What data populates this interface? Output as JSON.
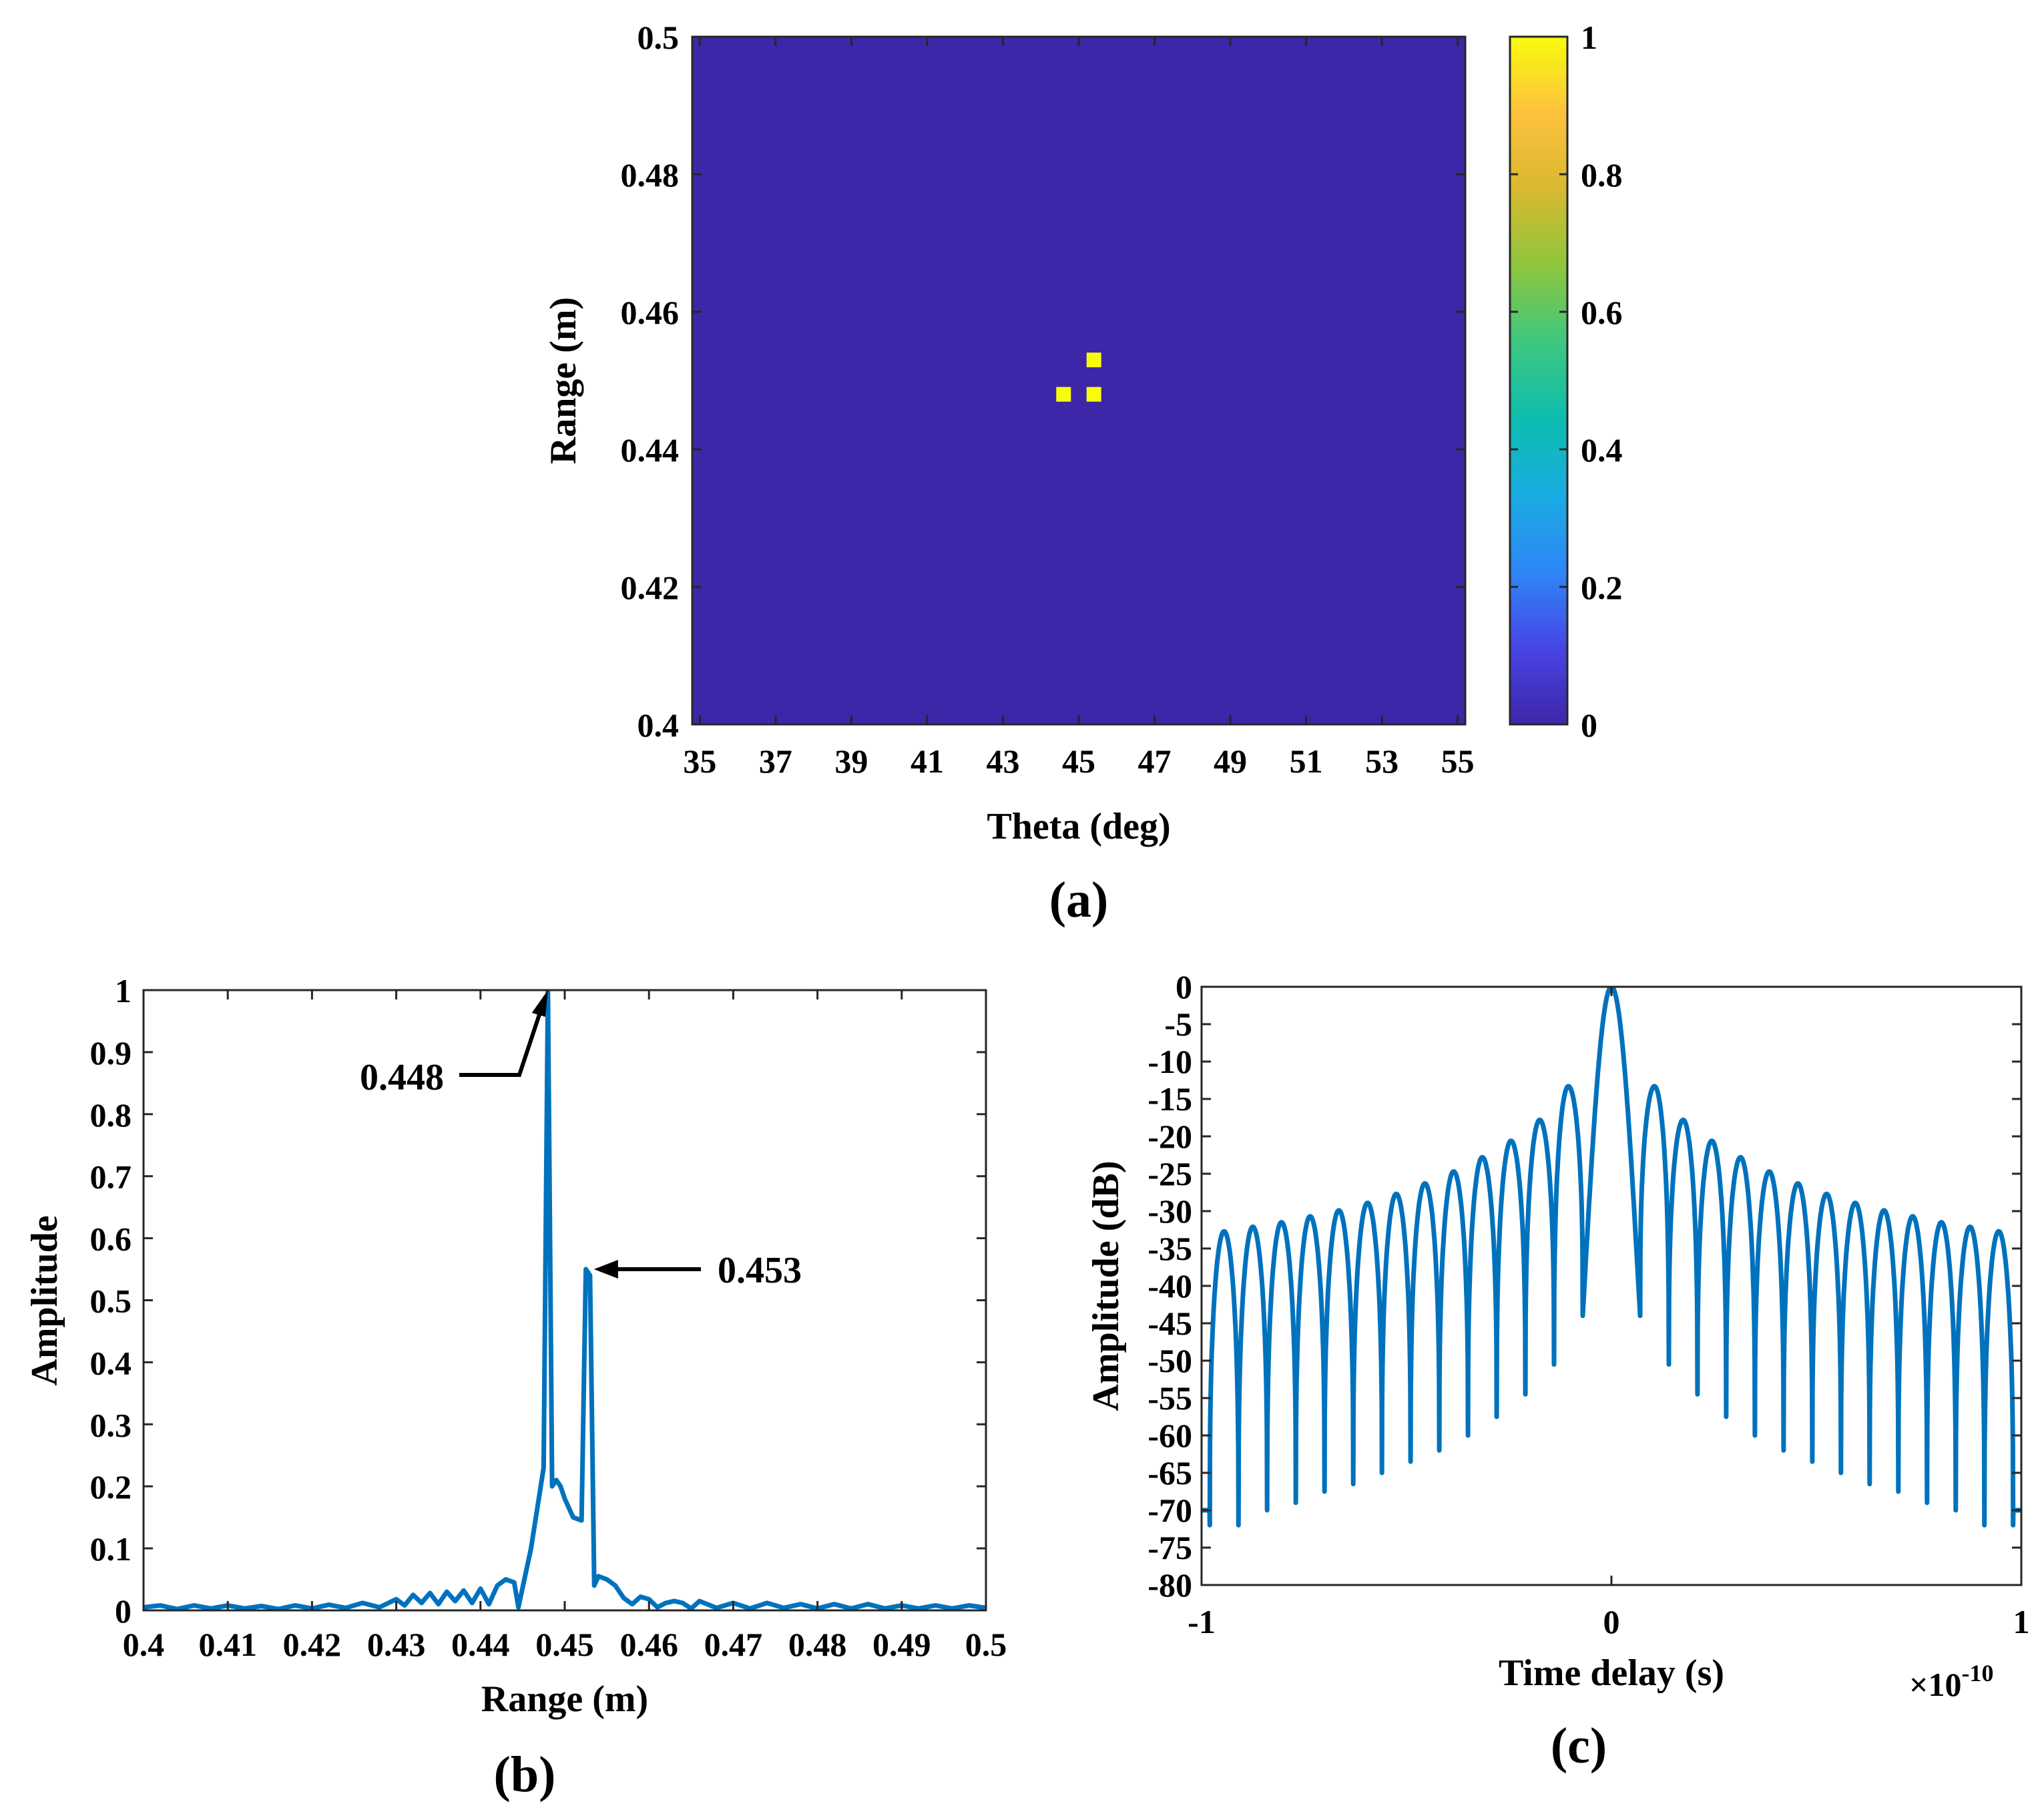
{
  "chart_data": [
    {
      "panel": "(a)",
      "type": "heatmap",
      "xlabel": "Theta (deg)",
      "ylabel": "Range (m)",
      "xlim": [
        34.8,
        55.2
      ],
      "ylim": [
        0.4,
        0.5
      ],
      "xticks": [
        35,
        37,
        39,
        41,
        43,
        45,
        47,
        49,
        51,
        53,
        55
      ],
      "yticks": [
        0.4,
        0.42,
        0.44,
        0.46,
        0.48,
        0.5
      ],
      "background_value": 0,
      "cells": [
        {
          "theta": 44.6,
          "range": 0.448,
          "value": 1
        },
        {
          "theta": 45.4,
          "range": 0.448,
          "value": 1
        },
        {
          "theta": 45.4,
          "range": 0.453,
          "value": 1
        }
      ],
      "colorbar": {
        "ticks": [
          0,
          0.2,
          0.4,
          0.6,
          0.8,
          1
        ],
        "colormap": "parula",
        "colors": [
          "#3e26a8",
          "#4745e5",
          "#2e86f8",
          "#1aace2",
          "#0dbdaf",
          "#3ec780",
          "#8ec63d",
          "#d8b92f",
          "#fdc13d",
          "#f9fb0e"
        ]
      }
    },
    {
      "panel": "(b)",
      "type": "line",
      "xlabel": "Range (m)",
      "ylabel": "Amplitude",
      "xlim": [
        0.4,
        0.5
      ],
      "ylim": [
        0,
        1
      ],
      "xticks": [
        0.4,
        0.41,
        0.42,
        0.43,
        0.44,
        0.45,
        0.46,
        0.47,
        0.48,
        0.49,
        0.5
      ],
      "yticks": [
        0,
        0.1,
        0.2,
        0.3,
        0.4,
        0.5,
        0.6,
        0.7,
        0.8,
        0.9,
        1
      ],
      "color": "#0072bd",
      "x": [
        0.4,
        0.402,
        0.404,
        0.406,
        0.408,
        0.41,
        0.412,
        0.414,
        0.416,
        0.418,
        0.42,
        0.422,
        0.424,
        0.426,
        0.428,
        0.43,
        0.431,
        0.432,
        0.433,
        0.434,
        0.435,
        0.436,
        0.437,
        0.438,
        0.439,
        0.44,
        0.441,
        0.442,
        0.443,
        0.444,
        0.4445,
        0.446,
        0.4475,
        0.448,
        0.4485,
        0.449,
        0.4495,
        0.45,
        0.451,
        0.452,
        0.4525,
        0.453,
        0.4535,
        0.454,
        0.455,
        0.456,
        0.457,
        0.458,
        0.459,
        0.46,
        0.461,
        0.462,
        0.463,
        0.464,
        0.465,
        0.466,
        0.468,
        0.47,
        0.472,
        0.474,
        0.476,
        0.478,
        0.48,
        0.482,
        0.484,
        0.486,
        0.488,
        0.49,
        0.492,
        0.494,
        0.496,
        0.498,
        0.5
      ],
      "y": [
        0.005,
        0.008,
        0.002,
        0.008,
        0.003,
        0.008,
        0.003,
        0.007,
        0.002,
        0.008,
        0.003,
        0.009,
        0.004,
        0.012,
        0.005,
        0.018,
        0.008,
        0.025,
        0.012,
        0.028,
        0.01,
        0.03,
        0.015,
        0.032,
        0.012,
        0.035,
        0.01,
        0.04,
        0.05,
        0.045,
        0.005,
        0.1,
        0.23,
        1.0,
        0.2,
        0.21,
        0.2,
        0.18,
        0.15,
        0.145,
        0.55,
        0.54,
        0.04,
        0.055,
        0.05,
        0.04,
        0.02,
        0.01,
        0.022,
        0.018,
        0.005,
        0.012,
        0.015,
        0.012,
        0.003,
        0.015,
        0.004,
        0.012,
        0.003,
        0.012,
        0.004,
        0.01,
        0.003,
        0.01,
        0.003,
        0.01,
        0.003,
        0.008,
        0.003,
        0.008,
        0.003,
        0.008,
        0.004
      ],
      "annotations": [
        {
          "text": "0.448",
          "x": 0.448,
          "y": 1.0
        },
        {
          "text": "0.453",
          "x": 0.453,
          "y": 0.55
        }
      ]
    },
    {
      "panel": "(c)",
      "type": "line",
      "xlabel": "Time delay (s)",
      "ylabel": "Amplitude (dB)",
      "xlim": [
        -1,
        1
      ],
      "ylim": [
        -80,
        0
      ],
      "x_exponent": "×10",
      "x_exponent_power": "-10",
      "xticks": [
        -1,
        0,
        1
      ],
      "yticks": [
        0,
        -5,
        -10,
        -15,
        -20,
        -25,
        -30,
        -35,
        -40,
        -45,
        -50,
        -55,
        -60,
        -65,
        -70,
        -75,
        -80
      ],
      "color": "#0072bd",
      "mainlobe_halfwidth": 0.07,
      "sidelobe_spacing": 0.07,
      "sidelobe_peaks_db": [
        -13.3,
        -17.8,
        -20.6,
        -22.8,
        -24.7,
        -26.3,
        -27.7,
        -28.9,
        -29.9,
        -30.7,
        -31.5,
        -32.1,
        -32.7
      ],
      "null_depths_db": [
        -44,
        -50.5,
        -54.5,
        -57.5,
        -60,
        -62,
        -63.5,
        -65,
        -66.5,
        -67.5,
        -69,
        -70,
        -72
      ]
    }
  ],
  "panel_labels": {
    "a": "(a)",
    "b": "(b)",
    "c": "(c)"
  }
}
